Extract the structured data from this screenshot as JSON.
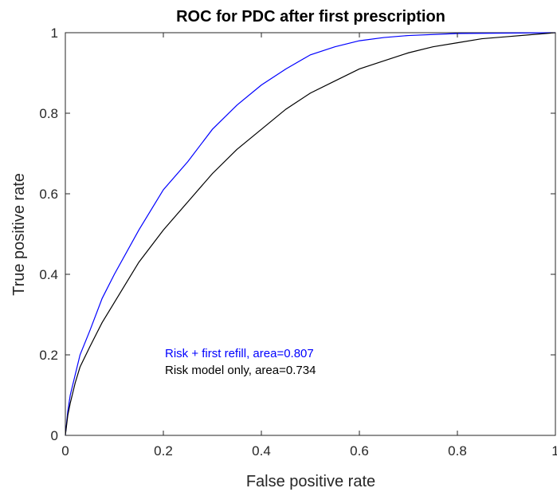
{
  "chart_data": {
    "type": "line",
    "title": "ROC for PDC after first prescription",
    "xlabel": "False positive rate",
    "ylabel": "True positive rate",
    "xlim": [
      0,
      1
    ],
    "ylim": [
      0,
      1
    ],
    "x_ticks": [
      0,
      0.2,
      0.4,
      0.6,
      0.8,
      1
    ],
    "x_tick_labels": [
      "0",
      "0.2",
      "0.4",
      "0.6",
      "0.8",
      "1"
    ],
    "y_ticks": [
      0,
      0.2,
      0.4,
      0.6,
      0.8,
      1
    ],
    "y_tick_labels": [
      "0",
      "0.2",
      "0.4",
      "0.6",
      "0.8",
      "1"
    ],
    "grid": false,
    "legend_position": "inside, lower center",
    "series": [
      {
        "name": "Risk + first refill, area=0.807",
        "color": "#0000ff",
        "x": [
          0,
          0.005,
          0.01,
          0.02,
          0.03,
          0.05,
          0.075,
          0.1,
          0.15,
          0.2,
          0.25,
          0.3,
          0.35,
          0.4,
          0.45,
          0.5,
          0.55,
          0.6,
          0.65,
          0.7,
          0.8,
          0.9,
          1.0
        ],
        "y": [
          0,
          0.06,
          0.1,
          0.15,
          0.2,
          0.26,
          0.34,
          0.4,
          0.51,
          0.61,
          0.68,
          0.76,
          0.82,
          0.87,
          0.91,
          0.945,
          0.965,
          0.98,
          0.988,
          0.993,
          0.998,
          0.999,
          1.0
        ]
      },
      {
        "name": "Risk model only, area=0.734",
        "color": "#000000",
        "x": [
          0,
          0.005,
          0.01,
          0.02,
          0.03,
          0.05,
          0.075,
          0.1,
          0.15,
          0.2,
          0.25,
          0.3,
          0.35,
          0.4,
          0.45,
          0.5,
          0.55,
          0.6,
          0.65,
          0.7,
          0.75,
          0.8,
          0.85,
          0.9,
          0.95,
          1.0
        ],
        "y": [
          0,
          0.05,
          0.08,
          0.13,
          0.17,
          0.22,
          0.28,
          0.33,
          0.43,
          0.51,
          0.58,
          0.65,
          0.71,
          0.76,
          0.81,
          0.85,
          0.88,
          0.91,
          0.93,
          0.95,
          0.965,
          0.975,
          0.985,
          0.99,
          0.995,
          1.0
        ]
      }
    ]
  }
}
